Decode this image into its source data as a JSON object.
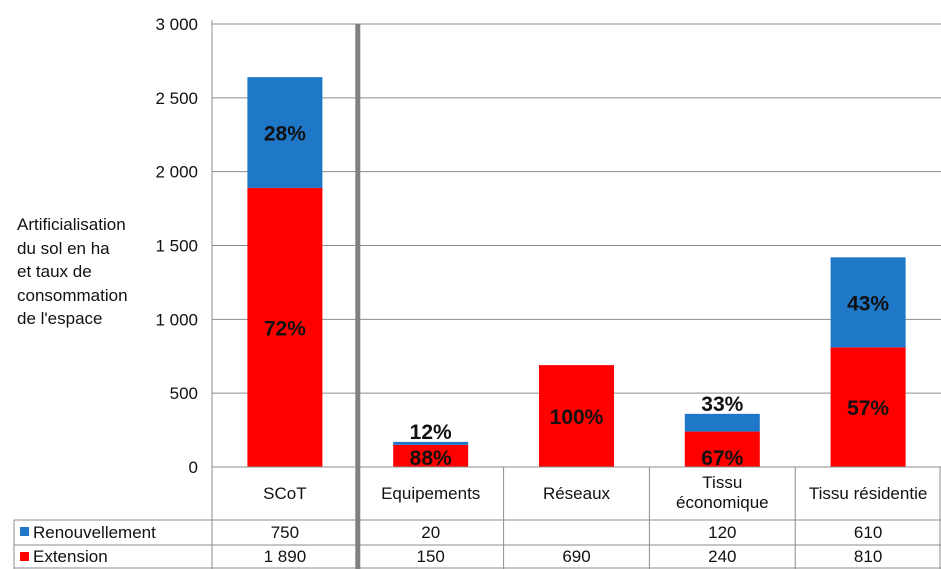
{
  "chart_data": {
    "type": "bar",
    "stacked": true,
    "categories": [
      "SCoT",
      "Equipements",
      "Réseaux",
      "Tissu économique",
      "Tissu résidentie"
    ],
    "category_lines": [
      [
        "SCoT"
      ],
      [
        "Equipements"
      ],
      [
        "Réseaux"
      ],
      [
        "Tissu",
        "économique"
      ],
      [
        "Tissu résidentie"
      ]
    ],
    "series": [
      {
        "name": "Extension",
        "color": "#ff0000",
        "values": [
          1890,
          150,
          690,
          240,
          810
        ],
        "table_values": [
          "1 890",
          "150",
          "690",
          "240",
          "810"
        ],
        "percent_labels": [
          "72%",
          "88%",
          "100%",
          "67%",
          "57%"
        ]
      },
      {
        "name": "Renouvellement",
        "color": "#1f77c8",
        "values": [
          750,
          20,
          0,
          120,
          610
        ],
        "table_values": [
          "750",
          "20",
          "",
          "120",
          "610"
        ],
        "percent_labels": [
          "28%",
          "12%",
          "",
          "33%",
          "43%"
        ]
      }
    ],
    "ylabel_lines": [
      "Artificialisation",
      "du sol en ha",
      "et taux de",
      "consommation",
      "de l'espace"
    ],
    "ylim": [
      0,
      3000
    ],
    "yticks": [
      0,
      500,
      1000,
      1500,
      2000,
      2500,
      3000
    ],
    "ytick_labels": [
      "0",
      "500",
      "1 000",
      "1 500",
      "2 000",
      "2 500",
      "3 000"
    ],
    "grid": true,
    "legend": "data-table"
  }
}
